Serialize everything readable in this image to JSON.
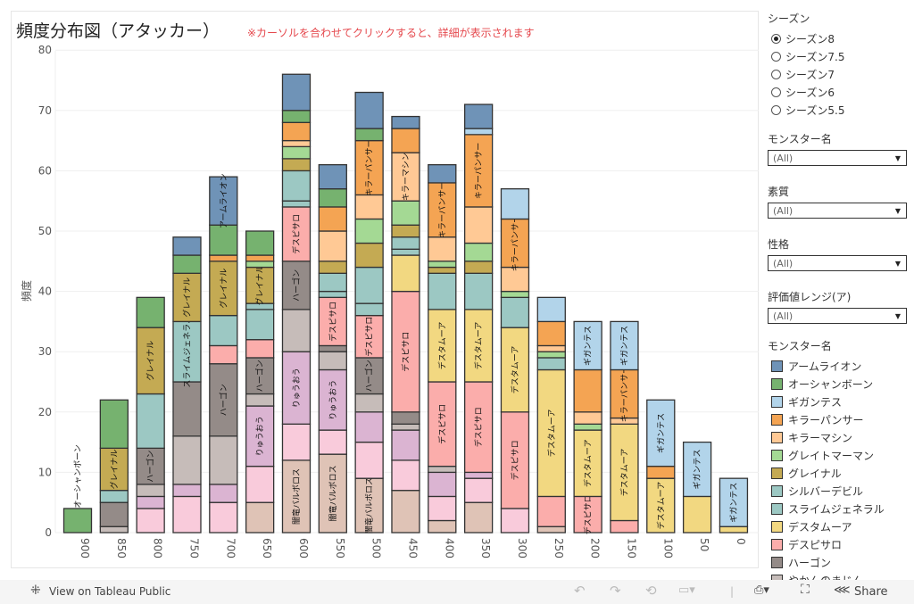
{
  "title": "頻度分布図（アタッカー）",
  "hint": "※カーソルを合わせてクリックすると、詳細が表示されます",
  "panel": {
    "season": {
      "title": "シーズン",
      "options": [
        "シーズン8",
        "シーズン7.5",
        "シーズン7",
        "シーズン6",
        "シーズン5.5"
      ],
      "selected": "シーズン8"
    },
    "filters": [
      {
        "title": "モンスター名",
        "value": "(All)"
      },
      {
        "title": "素質",
        "value": "(All)"
      },
      {
        "title": "性格",
        "value": "(All)"
      },
      {
        "title": "評価値レンジ(ア)",
        "value": "(All)"
      }
    ],
    "legend_title": "モンスター名"
  },
  "toolbar": {
    "view_label": "View on Tableau Public",
    "share_label": "Share"
  },
  "chart_data": {
    "type": "bar",
    "stacked": true,
    "ylabel": "頻度",
    "ylim": [
      0,
      80
    ],
    "yticks": [
      0,
      10,
      20,
      30,
      40,
      50,
      60,
      70,
      80
    ],
    "grid": true,
    "categories": [
      "900",
      "850",
      "800",
      "750",
      "700",
      "650",
      "600",
      "550",
      "500",
      "450",
      "400",
      "350",
      "300",
      "250",
      "200",
      "150",
      "100",
      "50",
      "0"
    ],
    "series": [
      {
        "id": "AL",
        "name": "アームライオン",
        "color": "#6f93b7"
      },
      {
        "id": "OS",
        "name": "オーシャンボーン",
        "color": "#76b26f"
      },
      {
        "id": "GI",
        "name": "ギガンテス",
        "color": "#b2d4ea"
      },
      {
        "id": "KP",
        "name": "キラーパンサー",
        "color": "#f4a453"
      },
      {
        "id": "KM",
        "name": "キラーマシン",
        "color": "#ffc995"
      },
      {
        "id": "GM",
        "name": "グレイトマーマン",
        "color": "#a4d994"
      },
      {
        "id": "GR",
        "name": "グレイナル",
        "color": "#c4aa53"
      },
      {
        "id": "SD",
        "name": "シルバーデビル",
        "color": "#9cc8c3"
      },
      {
        "id": "SG",
        "name": "スライムジェネラル",
        "color": "#9cc8c3"
      },
      {
        "id": "DM",
        "name": "デスタムーア",
        "color": "#f2d881"
      },
      {
        "id": "DP",
        "name": "デスピサロ",
        "color": "#fbadab"
      },
      {
        "id": "HG",
        "name": "ハーゴン",
        "color": "#948b88"
      },
      {
        "id": "YM",
        "name": "やかんのまじん",
        "color": "#c6bcb9"
      },
      {
        "id": "RY",
        "name": "りゅうおう",
        "color": "#dbb4d2"
      },
      {
        "id": "LP",
        "name": "",
        "color": "#f9cbdb"
      },
      {
        "id": "BB",
        "name": "闇竜バルボロス",
        "color": "#dfc3b6"
      }
    ],
    "bars": [
      {
        "x": "900",
        "segments": [
          [
            "OS",
            4
          ]
        ],
        "labels": [
          "OS"
        ]
      },
      {
        "x": "850",
        "segments": [
          [
            "YM",
            1
          ],
          [
            "HG",
            4
          ],
          [
            "SG",
            2
          ],
          [
            "GR",
            7
          ],
          [
            "OS",
            8
          ]
        ],
        "labels": [
          "GR"
        ]
      },
      {
        "x": "800",
        "segments": [
          [
            "LP",
            4
          ],
          [
            "RY",
            2
          ],
          [
            "YM",
            2
          ],
          [
            "HG",
            6
          ],
          [
            "SG",
            9
          ],
          [
            "GR",
            11
          ],
          [
            "OS",
            5
          ]
        ],
        "labels": [
          "HG",
          "GR"
        ]
      },
      {
        "x": "750",
        "segments": [
          [
            "LP",
            6
          ],
          [
            "RY",
            2
          ],
          [
            "YM",
            8
          ],
          [
            "HG",
            9
          ],
          [
            "SG",
            10
          ],
          [
            "GR",
            8
          ],
          [
            "OS",
            3
          ],
          [
            "AL",
            3
          ]
        ],
        "labels": [
          "SG",
          "GR"
        ]
      },
      {
        "x": "700",
        "segments": [
          [
            "LP",
            5
          ],
          [
            "RY",
            3
          ],
          [
            "YM",
            8
          ],
          [
            "HG",
            12
          ],
          [
            "DP",
            3
          ],
          [
            "SG",
            5
          ],
          [
            "GR",
            9
          ],
          [
            "KP",
            1
          ],
          [
            "OS",
            5
          ],
          [
            "AL",
            8
          ]
        ],
        "labels": [
          "HG",
          "GR",
          "AL"
        ]
      },
      {
        "x": "650",
        "segments": [
          [
            "BB",
            5
          ],
          [
            "LP",
            6
          ],
          [
            "RY",
            10
          ],
          [
            "YM",
            2
          ],
          [
            "HG",
            6
          ],
          [
            "DP",
            3
          ],
          [
            "SG",
            5
          ],
          [
            "SD",
            1
          ],
          [
            "GR",
            6
          ],
          [
            "GM",
            1
          ],
          [
            "KP",
            1
          ],
          [
            "OS",
            4
          ]
        ],
        "labels": [
          "RY",
          "HG",
          "GR"
        ]
      },
      {
        "x": "600",
        "segments": [
          [
            "BB",
            12
          ],
          [
            "LP",
            6
          ],
          [
            "RY",
            12
          ],
          [
            "YM",
            7
          ],
          [
            "HG",
            8
          ],
          [
            "DP",
            9
          ],
          [
            "SD",
            1
          ],
          [
            "SG",
            5
          ],
          [
            "GR",
            2
          ],
          [
            "GM",
            2
          ],
          [
            "KM",
            1
          ],
          [
            "KP",
            3
          ],
          [
            "OS",
            2
          ],
          [
            "AL",
            6
          ]
        ],
        "labels": [
          "BB",
          "RY",
          "HG",
          "DP"
        ]
      },
      {
        "x": "550",
        "segments": [
          [
            "BB",
            13
          ],
          [
            "LP",
            4
          ],
          [
            "RY",
            10
          ],
          [
            "YM",
            3
          ],
          [
            "HG",
            1
          ],
          [
            "DP",
            8
          ],
          [
            "SD",
            1
          ],
          [
            "SG",
            3
          ],
          [
            "GR",
            2
          ],
          [
            "KM",
            5
          ],
          [
            "KP",
            4
          ],
          [
            "OS",
            3
          ],
          [
            "AL",
            4
          ]
        ],
        "labels": [
          "BB",
          "RY",
          "DP"
        ]
      },
      {
        "x": "500",
        "segments": [
          [
            "BB",
            9
          ],
          [
            "LP",
            6
          ],
          [
            "RY",
            5
          ],
          [
            "YM",
            3
          ],
          [
            "HG",
            6
          ],
          [
            "DP",
            7
          ],
          [
            "SD",
            2
          ],
          [
            "SG",
            6
          ],
          [
            "GR",
            4
          ],
          [
            "GM",
            4
          ],
          [
            "KM",
            4
          ],
          [
            "KP",
            9
          ],
          [
            "OS",
            2
          ],
          [
            "AL",
            6
          ]
        ],
        "labels": [
          "BB",
          "HG",
          "DP",
          "KP"
        ]
      },
      {
        "x": "450",
        "segments": [
          [
            "BB",
            7
          ],
          [
            "LP",
            5
          ],
          [
            "RY",
            5
          ],
          [
            "YM",
            1
          ],
          [
            "HG",
            2
          ],
          [
            "DP",
            20
          ],
          [
            "DM",
            6
          ],
          [
            "SD",
            1
          ],
          [
            "SG",
            2
          ],
          [
            "GR",
            2
          ],
          [
            "GM",
            4
          ],
          [
            "KM",
            8
          ],
          [
            "KP",
            4
          ],
          [
            "AL",
            2
          ]
        ],
        "labels": [
          "DP",
          "KM"
        ]
      },
      {
        "x": "400",
        "segments": [
          [
            "BB",
            2
          ],
          [
            "LP",
            4
          ],
          [
            "RY",
            4
          ],
          [
            "YM",
            1
          ],
          [
            "DP",
            14
          ],
          [
            "DM",
            12
          ],
          [
            "SG",
            6
          ],
          [
            "GR",
            1
          ],
          [
            "GM",
            1
          ],
          [
            "KM",
            4
          ],
          [
            "KP",
            9
          ],
          [
            "AL",
            3
          ]
        ],
        "labels": [
          "DP",
          "DM",
          "KP"
        ]
      },
      {
        "x": "350",
        "segments": [
          [
            "BB",
            5
          ],
          [
            "LP",
            4
          ],
          [
            "RY",
            1
          ],
          [
            "DP",
            15
          ],
          [
            "DM",
            12
          ],
          [
            "SG",
            6
          ],
          [
            "GR",
            2
          ],
          [
            "GM",
            3
          ],
          [
            "KM",
            6
          ],
          [
            "KP",
            12
          ],
          [
            "GI",
            1
          ],
          [
            "AL",
            4
          ]
        ],
        "labels": [
          "DP",
          "DM",
          "KP"
        ]
      },
      {
        "x": "300",
        "segments": [
          [
            "LP",
            4
          ],
          [
            "DP",
            16
          ],
          [
            "DM",
            14
          ],
          [
            "SG",
            5
          ],
          [
            "GM",
            1
          ],
          [
            "KM",
            4
          ],
          [
            "KP",
            8
          ],
          [
            "GI",
            5
          ]
        ],
        "labels": [
          "DP",
          "DM",
          "KP"
        ]
      },
      {
        "x": "250",
        "segments": [
          [
            "BB",
            1
          ],
          [
            "DP",
            5
          ],
          [
            "DM",
            21
          ],
          [
            "SG",
            2
          ],
          [
            "GM",
            1
          ],
          [
            "KM",
            1
          ],
          [
            "KP",
            4
          ],
          [
            "GI",
            4
          ]
        ],
        "labels": [
          "DM"
        ]
      },
      {
        "x": "200",
        "segments": [
          [
            "DP",
            6
          ],
          [
            "DM",
            11
          ],
          [
            "GM",
            1
          ],
          [
            "KM",
            2
          ],
          [
            "KP",
            7
          ],
          [
            "GI",
            8
          ]
        ],
        "labels": [
          "DP",
          "DM",
          "GI"
        ]
      },
      {
        "x": "150",
        "segments": [
          [
            "DP",
            2
          ],
          [
            "DM",
            16
          ],
          [
            "KM",
            1
          ],
          [
            "KP",
            8
          ],
          [
            "GI",
            8
          ]
        ],
        "labels": [
          "DM",
          "KP",
          "GI"
        ]
      },
      {
        "x": "100",
        "segments": [
          [
            "DM",
            9
          ],
          [
            "KP",
            2
          ],
          [
            "GI",
            11
          ]
        ],
        "labels": [
          "DM",
          "GI"
        ]
      },
      {
        "x": "50",
        "segments": [
          [
            "DM",
            6
          ],
          [
            "GI",
            9
          ]
        ],
        "labels": [
          "GI"
        ]
      },
      {
        "x": "0",
        "segments": [
          [
            "DM",
            1
          ],
          [
            "GI",
            8
          ]
        ],
        "labels": [
          "GI"
        ]
      }
    ]
  }
}
